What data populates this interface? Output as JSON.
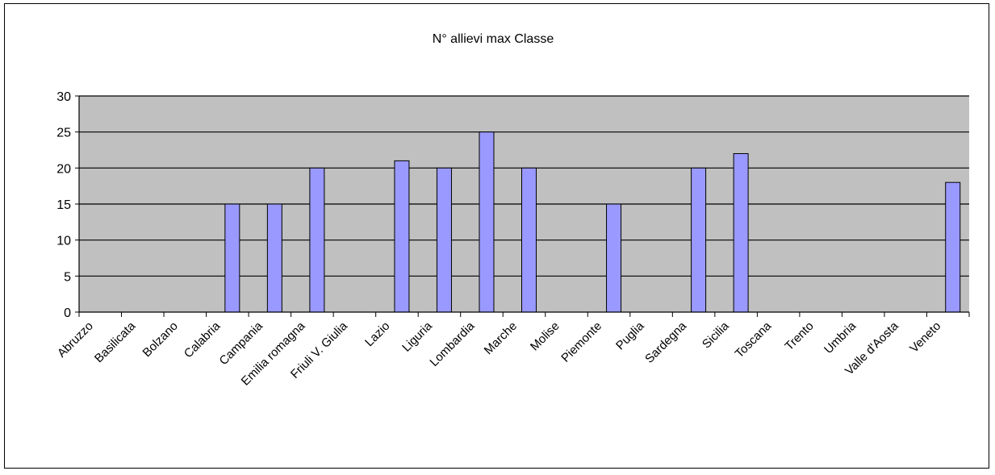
{
  "chart_data": {
    "type": "bar",
    "title": "N° allievi max  Classe",
    "xlabel": "",
    "ylabel": "",
    "ylim": [
      0,
      30
    ],
    "yticks": [
      0,
      5,
      10,
      15,
      20,
      25,
      30
    ],
    "grid": true,
    "legend": "none",
    "categories": [
      "Abruzzo",
      "Basilicata",
      "Bolzano",
      "Calabria",
      "Campania",
      "Emilia romagna",
      "Friuli V. Giulia",
      "Lazio",
      "Liguria",
      "Lombardia",
      "Marche",
      "Molise",
      "Piemonte",
      "Puglia",
      "Sardegna",
      "Sicilia",
      "Toscana",
      "Trento",
      "Umbria",
      "Valle d'Aosta",
      "Veneto"
    ],
    "values": [
      0,
      0,
      0,
      15,
      15,
      20,
      0,
      21,
      20,
      25,
      20,
      0,
      15,
      0,
      20,
      22,
      0,
      0,
      0,
      0,
      18
    ],
    "colors": {
      "plot_background": "#c0c0c0",
      "bar_fill": "#9999ff",
      "bar_stroke": "#000000",
      "gridline": "#000000"
    }
  }
}
